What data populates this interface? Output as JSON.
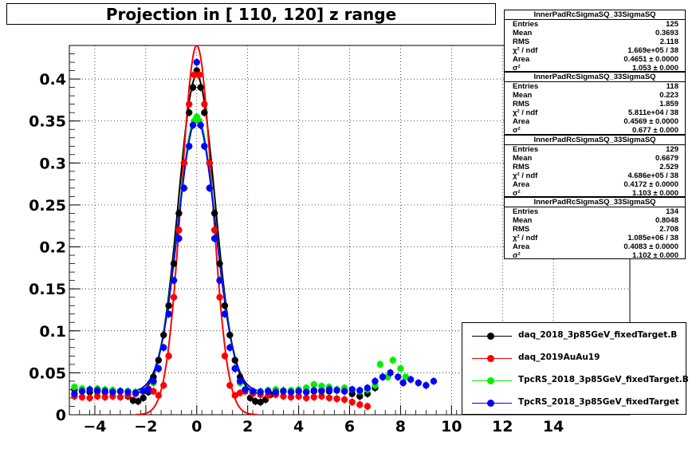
{
  "chart_data": {
    "type": "scatter",
    "title": "Projection in [ 110, 120] z range",
    "xlim": [
      -5,
      17
    ],
    "ylim": [
      0,
      0.44
    ],
    "xticks": [
      -4,
      -2,
      0,
      2,
      4,
      6,
      8,
      10,
      12,
      14
    ],
    "yticks": [
      0,
      0.05,
      0.1,
      0.15,
      0.2,
      0.25,
      0.3,
      0.35,
      0.4
    ],
    "grid": true,
    "legend_position": "bottom-right",
    "series": [
      {
        "name": "daq_2018_3p85GeV_fixedTarget.B",
        "color": "#000000",
        "points": [
          [
            -4.8,
            0.03
          ],
          [
            -4.5,
            0.028
          ],
          [
            -4.2,
            0.027
          ],
          [
            -3.9,
            0.028
          ],
          [
            -3.6,
            0.027
          ],
          [
            -3.3,
            0.029
          ],
          [
            -3,
            0.028
          ],
          [
            -2.7,
            0.022
          ],
          [
            -2.5,
            0.017
          ],
          [
            -2.3,
            0.016
          ],
          [
            -2.1,
            0.02
          ],
          [
            -1.9,
            0.027
          ],
          [
            -1.7,
            0.045
          ],
          [
            -1.5,
            0.065
          ],
          [
            -1.3,
            0.095
          ],
          [
            -1.1,
            0.13
          ],
          [
            -0.9,
            0.18
          ],
          [
            -0.7,
            0.24
          ],
          [
            -0.5,
            0.3
          ],
          [
            -0.3,
            0.36
          ],
          [
            -0.15,
            0.39
          ],
          [
            0,
            0.41
          ],
          [
            0.15,
            0.39
          ],
          [
            0.3,
            0.36
          ],
          [
            0.5,
            0.3
          ],
          [
            0.7,
            0.24
          ],
          [
            0.9,
            0.18
          ],
          [
            1.1,
            0.13
          ],
          [
            1.3,
            0.095
          ],
          [
            1.5,
            0.065
          ],
          [
            1.7,
            0.045
          ],
          [
            1.9,
            0.028
          ],
          [
            2.1,
            0.02
          ],
          [
            2.3,
            0.016
          ],
          [
            2.5,
            0.015
          ],
          [
            2.7,
            0.018
          ],
          [
            2.9,
            0.024
          ],
          [
            3.1,
            0.027
          ],
          [
            3.4,
            0.028
          ],
          [
            3.7,
            0.027
          ],
          [
            4,
            0.028
          ],
          [
            4.3,
            0.027
          ],
          [
            4.6,
            0.028
          ],
          [
            4.9,
            0.029
          ],
          [
            5.2,
            0.028
          ],
          [
            5.5,
            0.03
          ],
          [
            5.8,
            0.028
          ],
          [
            6.1,
            0.025
          ],
          [
            6.4,
            0.022
          ],
          [
            6.7,
            0.025
          ],
          [
            7,
            0.032
          ],
          [
            7.3,
            0.045
          ]
        ]
      },
      {
        "name": "daq_2019AuAu19",
        "color": "#ff0000",
        "points": [
          [
            -4.8,
            0.022
          ],
          [
            -4.5,
            0.021
          ],
          [
            -4.2,
            0.02
          ],
          [
            -3.9,
            0.022
          ],
          [
            -3.6,
            0.021
          ],
          [
            -3.3,
            0.022
          ],
          [
            -3,
            0.021
          ],
          [
            -2.7,
            0.023
          ],
          [
            -2.4,
            0.025
          ],
          [
            -2.1,
            0.028
          ],
          [
            -1.9,
            0.031
          ],
          [
            -1.7,
            0.028
          ],
          [
            -1.5,
            0.023
          ],
          [
            -1.3,
            0.035
          ],
          [
            -1.1,
            0.07
          ],
          [
            -0.9,
            0.14
          ],
          [
            -0.7,
            0.22
          ],
          [
            -0.5,
            0.3
          ],
          [
            -0.3,
            0.37
          ],
          [
            -0.1,
            0.405
          ],
          [
            0.1,
            0.405
          ],
          [
            0.3,
            0.37
          ],
          [
            0.5,
            0.3
          ],
          [
            0.7,
            0.22
          ],
          [
            0.9,
            0.14
          ],
          [
            1.1,
            0.07
          ],
          [
            1.3,
            0.035
          ],
          [
            1.5,
            0.023
          ],
          [
            1.7,
            0.026
          ],
          [
            1.9,
            0.028
          ],
          [
            2.2,
            0.025
          ],
          [
            2.5,
            0.024
          ],
          [
            2.8,
            0.023
          ],
          [
            3.1,
            0.024
          ],
          [
            3.4,
            0.022
          ],
          [
            3.7,
            0.021
          ],
          [
            4,
            0.022
          ],
          [
            4.3,
            0.02
          ],
          [
            4.6,
            0.021
          ],
          [
            4.9,
            0.022
          ],
          [
            5.2,
            0.02
          ],
          [
            5.5,
            0.019
          ],
          [
            5.8,
            0.018
          ],
          [
            6.1,
            0.015
          ],
          [
            6.4,
            0.012
          ],
          [
            6.7,
            0.01
          ]
        ]
      },
      {
        "name": "TpcRS_2018_3p85GeV_fixedTarget.B",
        "color": "#00ee00",
        "points": [
          [
            -4.8,
            0.033
          ],
          [
            -4.5,
            0.031
          ],
          [
            -4.2,
            0.03
          ],
          [
            -3.9,
            0.031
          ],
          [
            -3.6,
            0.03
          ],
          [
            -3.3,
            0.029
          ],
          [
            -3,
            0.028
          ],
          [
            -2.7,
            0.028
          ],
          [
            -2.4,
            0.027
          ],
          [
            -2.1,
            0.028
          ],
          [
            -1.9,
            0.03
          ],
          [
            -1.7,
            0.038
          ],
          [
            -1.5,
            0.055
          ],
          [
            -1.3,
            0.08
          ],
          [
            -1.1,
            0.12
          ],
          [
            -0.9,
            0.16
          ],
          [
            -0.7,
            0.21
          ],
          [
            -0.5,
            0.27
          ],
          [
            -0.3,
            0.32
          ],
          [
            -0.1,
            0.35
          ],
          [
            0,
            0.355
          ],
          [
            0.1,
            0.35
          ],
          [
            0.3,
            0.32
          ],
          [
            0.5,
            0.27
          ],
          [
            0.7,
            0.21
          ],
          [
            0.9,
            0.16
          ],
          [
            1.1,
            0.12
          ],
          [
            1.3,
            0.08
          ],
          [
            1.5,
            0.055
          ],
          [
            1.7,
            0.038
          ],
          [
            1.9,
            0.03
          ],
          [
            2.2,
            0.028
          ],
          [
            2.5,
            0.028
          ],
          [
            2.8,
            0.029
          ],
          [
            3.1,
            0.03
          ],
          [
            3.4,
            0.029
          ],
          [
            3.7,
            0.029
          ],
          [
            4,
            0.03
          ],
          [
            4.3,
            0.032
          ],
          [
            4.6,
            0.036
          ],
          [
            4.9,
            0.034
          ],
          [
            5.2,
            0.033
          ],
          [
            5.5,
            0.03
          ],
          [
            5.8,
            0.032
          ],
          [
            6.1,
            0.03
          ],
          [
            6.4,
            0.028
          ],
          [
            6.7,
            0.03
          ],
          [
            7,
            0.035
          ],
          [
            7.2,
            0.06
          ],
          [
            7.5,
            0.045
          ],
          [
            7.7,
            0.065
          ],
          [
            8,
            0.055
          ],
          [
            8.2,
            0.045
          ]
        ]
      },
      {
        "name": "TpcRS_2018_3p85GeV_fixedTarget",
        "color": "#0000ff",
        "points": [
          [
            -4.8,
            0.025
          ],
          [
            -4.5,
            0.028
          ],
          [
            -4.2,
            0.03
          ],
          [
            -3.9,
            0.029
          ],
          [
            -3.6,
            0.028
          ],
          [
            -3.3,
            0.027
          ],
          [
            -3,
            0.028
          ],
          [
            -2.7,
            0.027
          ],
          [
            -2.4,
            0.026
          ],
          [
            -2.1,
            0.028
          ],
          [
            -1.9,
            0.03
          ],
          [
            -1.7,
            0.04
          ],
          [
            -1.5,
            0.055
          ],
          [
            -1.3,
            0.08
          ],
          [
            -1.1,
            0.12
          ],
          [
            -0.9,
            0.16
          ],
          [
            -0.7,
            0.21
          ],
          [
            -0.5,
            0.27
          ],
          [
            -0.3,
            0.32
          ],
          [
            -0.15,
            0.345
          ],
          [
            0,
            0.42
          ],
          [
            0.15,
            0.345
          ],
          [
            0.3,
            0.32
          ],
          [
            0.5,
            0.27
          ],
          [
            0.7,
            0.21
          ],
          [
            0.9,
            0.16
          ],
          [
            1.1,
            0.12
          ],
          [
            1.3,
            0.08
          ],
          [
            1.5,
            0.055
          ],
          [
            1.7,
            0.04
          ],
          [
            1.9,
            0.03
          ],
          [
            2.2,
            0.028
          ],
          [
            2.5,
            0.027
          ],
          [
            2.8,
            0.028
          ],
          [
            3.1,
            0.027
          ],
          [
            3.4,
            0.028
          ],
          [
            3.7,
            0.027
          ],
          [
            4,
            0.028
          ],
          [
            4.3,
            0.027
          ],
          [
            4.6,
            0.029
          ],
          [
            4.9,
            0.028
          ],
          [
            5.2,
            0.03
          ],
          [
            5.5,
            0.029
          ],
          [
            5.8,
            0.028
          ],
          [
            6.1,
            0.03
          ],
          [
            6.4,
            0.029
          ],
          [
            6.7,
            0.032
          ],
          [
            7,
            0.04
          ],
          [
            7.3,
            0.045
          ],
          [
            7.6,
            0.05
          ],
          [
            7.9,
            0.045
          ],
          [
            8.1,
            0.038
          ],
          [
            8.4,
            0.042
          ],
          [
            8.7,
            0.038
          ],
          [
            9,
            0.035
          ],
          [
            9.3,
            0.04
          ]
        ]
      }
    ],
    "curves": [
      {
        "series": "daq_2018_3p85GeV_fixedTarget.B",
        "color": "#000000",
        "amp": 0.38,
        "sigma": 0.72,
        "base": 0.024
      },
      {
        "series": "daq_2019AuAu19",
        "color": "#ff0000",
        "amp": 0.44,
        "sigma": 0.6,
        "base": 0.0
      },
      {
        "series": "TpcRS_2018_3p85GeV_fixedTarget.B",
        "color": "#00ee00",
        "amp": 0.33,
        "sigma": 0.74,
        "base": 0.027
      },
      {
        "series": "TpcRS_2018_3p85GeV_fixedTarget",
        "color": "#0000ff",
        "amp": 0.325,
        "sigma": 0.74,
        "base": 0.027
      }
    ]
  },
  "stats_boxes": [
    {
      "name": "InnerPadRcSigmaSQ_33SigmaSQ",
      "entries": "125",
      "mean": "0.3693",
      "rms": "2.118",
      "chi2": "1.669e+05 / 38",
      "area": "0.4651 ± 0.0000",
      "sigma": "1.053 ± 0.000"
    },
    {
      "name": "InnerPadRcSigmaSQ_33SigmaSQ",
      "entries": "118",
      "mean": "0.223",
      "rms": "1.859",
      "chi2": "5.811e+04 / 38",
      "area": "0.4569 ± 0.0000",
      "sigma": "0.677 ± 0.000"
    },
    {
      "name": "InnerPadRcSigmaSQ_33SigmaSQ",
      "entries": "129",
      "mean": "0.6679",
      "rms": "2.529",
      "chi2": "4.686e+05 / 38",
      "area": "0.4172 ± 0.0000",
      "sigma": "1.103 ± 0.000"
    },
    {
      "name": "InnerPadRcSigmaSQ_33SigmaSQ",
      "entries": "134",
      "mean": "0.8048",
      "rms": "2.708",
      "chi2": "1.085e+06 / 38",
      "area": "0.4083 ± 0.0000",
      "sigma": "1.102 ± 0.000"
    }
  ],
  "stat_labels": {
    "entries": "Entries",
    "mean": "Mean",
    "rms": "RMS",
    "chi2": "χ² / ndf",
    "area": "Area",
    "sigma": "σ²"
  }
}
